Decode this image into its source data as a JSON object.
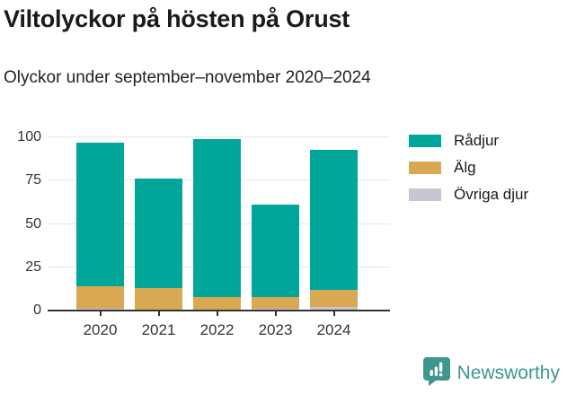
{
  "header": {
    "title": "Viltolyckor på hösten på Orust",
    "subtitle": "Olyckor under september–november 2020–2024"
  },
  "chart_data": {
    "type": "bar",
    "stacked": true,
    "title": "Viltolyckor på hösten på Orust",
    "subtitle": "Olyckor under september–november 2020–2024",
    "categories": [
      "2020",
      "2021",
      "2022",
      "2023",
      "2024"
    ],
    "series": [
      {
        "name": "Rådjur",
        "color": "#00a69a",
        "values": [
          83,
          63,
          91,
          53,
          81
        ]
      },
      {
        "name": "Älg",
        "color": "#d9a853",
        "values": [
          13,
          13,
          8,
          7,
          10
        ]
      },
      {
        "name": "Övriga djur",
        "color": "#c9c6d2",
        "values": [
          1,
          0,
          0,
          1,
          2
        ]
      }
    ],
    "stack_order_bottom_to_top": [
      "Övriga djur",
      "Älg",
      "Rådjur"
    ],
    "totals": [
      97,
      76,
      99,
      61,
      93
    ],
    "xlabel": "",
    "ylabel": "",
    "ylim": [
      0,
      100
    ],
    "yticks": [
      0,
      25,
      50,
      75,
      100
    ],
    "grid": true,
    "legend_position": "right",
    "axis_color": "#333333",
    "grid_color": "#e7e7e7"
  },
  "footer": {
    "brand": "Newsworthy",
    "brand_color": "#3e968f"
  }
}
